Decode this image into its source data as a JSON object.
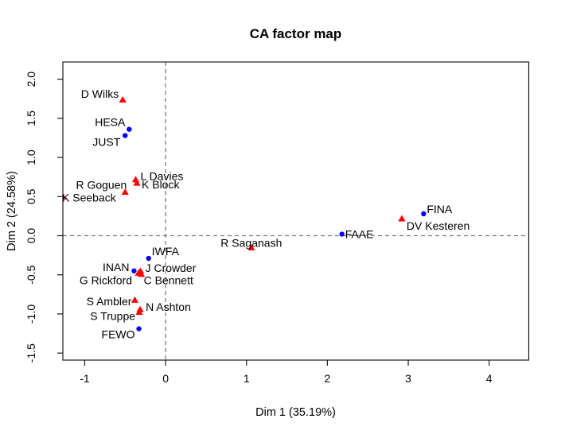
{
  "figure": {
    "background": "#ffffff"
  },
  "chart_data": {
    "type": "scatter",
    "title": "CA factor map",
    "xlabel": "Dim 1 (35.19%)",
    "ylabel": "Dim 2 (24.58%)",
    "xlim": [
      -1.27,
      4.49
    ],
    "ylim": [
      -1.59,
      2.22
    ],
    "grid": false,
    "legend": "none",
    "x_ticks": {
      "values": [
        -1,
        0,
        1,
        2,
        3,
        4
      ],
      "labels": [
        "-1",
        "0",
        "1",
        "2",
        "3",
        "4"
      ]
    },
    "y_ticks": {
      "values": [
        -1.5,
        -1.0,
        -0.5,
        0.0,
        0.5,
        1.0,
        1.5,
        2.0
      ],
      "labels": [
        "-1.5",
        "-1.0",
        "-0.5",
        "0.0",
        "0.5",
        "1.0",
        "1.5",
        "2.0"
      ]
    },
    "reference_lines": [
      {
        "axis": "h",
        "at": 0,
        "style": "dashed",
        "color": "#7d7d7d"
      },
      {
        "axis": "v",
        "at": 0,
        "style": "dashed",
        "color": "#7d7d7d"
      }
    ],
    "series": [
      {
        "name": "row-points",
        "marker": "triangle",
        "color": "#ff0000",
        "points": [
          {
            "label": "D Wilks",
            "x": -0.53,
            "y": 1.74,
            "anchor": "end",
            "dx": -5,
            "dy": -7
          },
          {
            "label": "L Davies",
            "x": -0.37,
            "y": 0.72,
            "anchor": "start",
            "dx": 6,
            "dy": -4
          },
          {
            "label": "K Block",
            "x": -0.355,
            "y": 0.675,
            "anchor": "start",
            "dx": 6,
            "dy": 2
          },
          {
            "label": "R Goguen",
            "x": -0.5,
            "y": 0.56,
            "anchor": "end",
            "dx": 2,
            "dy": -9
          },
          {
            "label": "K Seeback",
            "x": -1.27,
            "y": 0.5,
            "anchor": "start",
            "dx": -1,
            "dy": 1
          },
          {
            "label": "J Crowder",
            "x": -0.31,
            "y": -0.45,
            "anchor": "start",
            "dx": 6,
            "dy": -4
          },
          {
            "label": "G Rickford",
            "x": -0.335,
            "y": -0.475,
            "anchor": "end",
            "dx": -8,
            "dy": 9
          },
          {
            "label": "C Bennett",
            "x": -0.3,
            "y": -0.49,
            "anchor": "start",
            "dx": 3,
            "dy": 8
          },
          {
            "label": "S Ambler",
            "x": -0.38,
            "y": -0.82,
            "anchor": "end",
            "dx": -4,
            "dy": 2
          },
          {
            "label": "N Ashton",
            "x": -0.315,
            "y": -0.94,
            "anchor": "start",
            "dx": 7,
            "dy": -3
          },
          {
            "label": "S Truppe",
            "x": -0.325,
            "y": -0.975,
            "anchor": "end",
            "dx": -5,
            "dy": 5
          },
          {
            "label": "R Saganash",
            "x": 1.06,
            "y": -0.15,
            "anchor": "middle",
            "dx": 0,
            "dy": -6
          },
          {
            "label": "DV Kesteren",
            "x": 2.92,
            "y": 0.22,
            "anchor": "start",
            "dx": 6,
            "dy": 9
          }
        ]
      },
      {
        "name": "column-points",
        "marker": "circle",
        "color": "#0000ff",
        "points": [
          {
            "label": "HESA",
            "x": -0.45,
            "y": 1.36,
            "anchor": "end",
            "dx": -5,
            "dy": -9
          },
          {
            "label": "JUST",
            "x": -0.5,
            "y": 1.28,
            "anchor": "end",
            "dx": -6,
            "dy": 8
          },
          {
            "label": "IWFA",
            "x": -0.21,
            "y": -0.29,
            "anchor": "start",
            "dx": 4,
            "dy": -9
          },
          {
            "label": "INAN",
            "x": -0.39,
            "y": -0.45,
            "anchor": "end",
            "dx": -6,
            "dy": -5
          },
          {
            "label": "FEWO",
            "x": -0.33,
            "y": -1.19,
            "anchor": "end",
            "dx": -5,
            "dy": 7
          },
          {
            "label": "FAAE",
            "x": 2.18,
            "y": 0.02,
            "anchor": "start",
            "dx": 4,
            "dy": 0
          },
          {
            "label": "FINA",
            "x": 3.19,
            "y": 0.28,
            "anchor": "start",
            "dx": 4,
            "dy": -6
          }
        ]
      }
    ]
  }
}
